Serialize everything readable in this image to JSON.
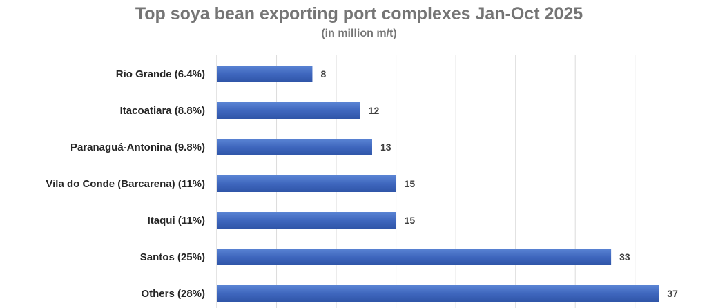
{
  "chart_data": {
    "type": "bar",
    "orientation": "horizontal",
    "title": "Top soya bean exporting port complexes Jan-Oct 2025",
    "subtitle": "(in million m/t)",
    "categories": [
      "Rio Grande (6.4%)",
      "Itacoatiara (8.8%)",
      "Paranaguá-Antonina (9.8%)",
      "Vila do Conde (Barcarena) (11%)",
      "Itaqui (11%)",
      "Santos (25%)",
      "Others (28%)"
    ],
    "values": [
      8,
      12,
      13,
      15,
      15,
      33,
      37
    ],
    "data_labels": [
      "8",
      "12",
      "13",
      "15",
      "15",
      "33",
      "37"
    ],
    "xlim": [
      0,
      37.5
    ],
    "grid": true,
    "legend": "none",
    "bar_color": "#4472C4"
  }
}
